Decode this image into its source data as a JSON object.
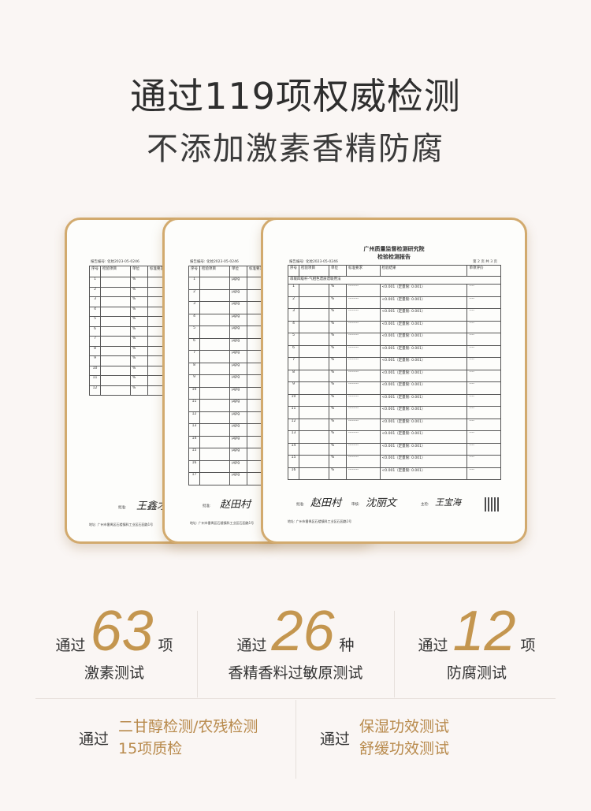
{
  "header": {
    "title": "通过119项权威检测",
    "subtitle": "不添加激素香精防腐"
  },
  "documents": {
    "institute": "广州质量监督检测研究院",
    "report_type": "检验检测报告",
    "report_no": "报告编号: 化妆2023-05-0246",
    "page": "第 2 页 共 3 页",
    "col_headers": [
      "序号",
      "检验项目",
      "单位",
      "标准要求",
      "检验结果",
      "单项评价"
    ],
    "section": "串联四级杆-气相色谱质谱联用法",
    "result_value": "<0.001（定量限: 0.001）",
    "dash": "----",
    "approve_label": "批准:",
    "review_label": "审核:",
    "main_label": "主检:",
    "signatures": [
      "王鑫才",
      "赵田村",
      "沈丽文",
      "王宝海"
    ],
    "address": "地址: 广州市番禺区石楼镇科工业区石园路1号",
    "left_rows": 12,
    "left_unit": "%",
    "middle_rows": 17,
    "middle_unit": "μg/g",
    "right_rows": 16,
    "right_unit": "%"
  },
  "stats": [
    {
      "prefix": "通过",
      "number": "63",
      "suffix": "项",
      "desc": "激素测试"
    },
    {
      "prefix": "通过",
      "number": "26",
      "suffix": "种",
      "desc": "香精香料过敏原测试"
    },
    {
      "prefix": "通过",
      "number": "12",
      "suffix": "项",
      "desc": "防腐测试"
    }
  ],
  "bottom": [
    {
      "prefix": "通过",
      "lines": [
        "二甘醇检测/农残检测",
        "15项质检"
      ]
    },
    {
      "prefix": "通过",
      "lines": [
        "保湿功效测试",
        "舒缓功效测试"
      ]
    }
  ],
  "colors": {
    "gold": "#c4964f",
    "border": "#d2aa6e"
  }
}
